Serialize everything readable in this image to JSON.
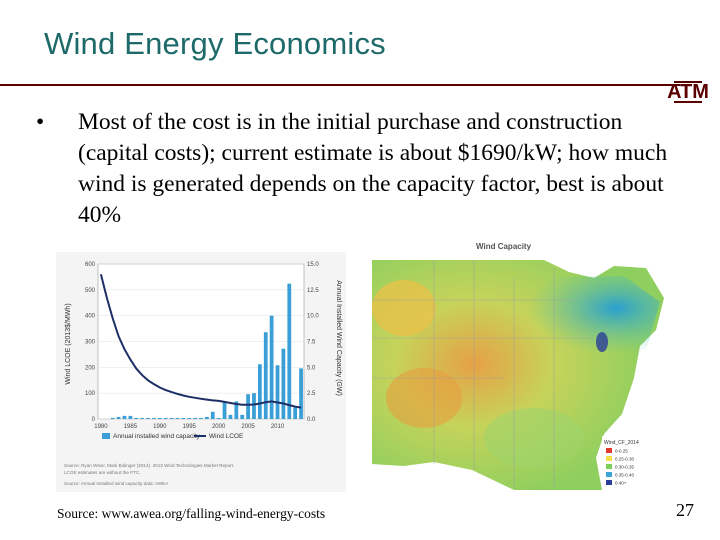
{
  "slide": {
    "title": "Wind Energy Economics",
    "bullet_text": "Most of the cost is in the initial purchase and construction (capital costs); current estimate is about $1690/kW; how much wind is generated depends on the capacity factor, best is about 40%",
    "source": "Source: www.awea.org/falling-wind-energy-costs",
    "page_number": "27",
    "logo_text": "ATM"
  },
  "colors": {
    "title": "#1e6a6a",
    "rule": "#5a0000",
    "bar": "#3a9fd6",
    "lcoe_line": "#1d2f66"
  },
  "chart_data": {
    "type": "bar",
    "title": "",
    "x_ticks": [
      "1980",
      "1985",
      "1990",
      "1995",
      "2000",
      "2005",
      "2010"
    ],
    "ylabel_left": "Wind LCOE (2013$/MWh)",
    "ylabel_right": "Annual Installed Wind Capacity (GW)",
    "yleft_ticks": [
      "600",
      "500",
      "400",
      "300",
      "200",
      "100",
      "0"
    ],
    "yright_ticks": [
      "15.0",
      "12.5",
      "10.0",
      "7.5",
      "5.0",
      "2.5",
      "0.0"
    ],
    "ylim_left": [
      0,
      600
    ],
    "ylim_right": [
      0,
      15
    ],
    "years": [
      1980,
      1981,
      1982,
      1983,
      1984,
      1985,
      1986,
      1987,
      1988,
      1989,
      1990,
      1991,
      1992,
      1993,
      1994,
      1995,
      1996,
      1997,
      1998,
      1999,
      2000,
      2001,
      2002,
      2003,
      2004,
      2005,
      2006,
      2007,
      2008,
      2009,
      2010,
      2011,
      2012,
      2013,
      2014
    ],
    "series": [
      {
        "name": "Annual installed wind capacity",
        "axis": "right",
        "values": [
          0.0,
          0.0,
          0.1,
          0.2,
          0.3,
          0.3,
          0.1,
          0.1,
          0.1,
          0.1,
          0.1,
          0.1,
          0.1,
          0.1,
          0.1,
          0.1,
          0.1,
          0.1,
          0.2,
          0.7,
          0.1,
          1.7,
          0.4,
          1.7,
          0.4,
          2.4,
          2.5,
          5.3,
          8.4,
          10.0,
          5.2,
          6.8,
          13.1,
          1.1,
          4.9
        ]
      },
      {
        "name": "Wind LCOE",
        "axis": "left",
        "values": [
          560,
          470,
          390,
          320,
          270,
          230,
          195,
          170,
          150,
          135,
          122,
          112,
          104,
          97,
          91,
          86,
          82,
          78,
          75,
          72,
          70,
          66,
          62,
          58,
          55,
          55,
          56,
          60,
          65,
          68,
          64,
          60,
          54,
          48,
          44
        ]
      }
    ],
    "legend": [
      "Annual installed wind capacity",
      "Wind LCOE"
    ],
    "notes": [
      "Source: Ryan Wiser, Mark Bolinger (2014). 2013 Wind Technologies Market Report.",
      "LCOE estimates are without the PTC."
    ],
    "credit": "Source: Annual Installed wind capacity data: AWEA"
  },
  "map": {
    "title": "Wind Capacity",
    "legend_title": "Wind_CF_2014",
    "legend_items": [
      "0-0.25",
      "0.25-0.30",
      "0.30-0.35",
      "0.35-0.40",
      "0.40+"
    ],
    "legend_colors": [
      "#e23a2c",
      "#f6e04a",
      "#7ccf58",
      "#3aa6d8",
      "#2a3d9a"
    ]
  }
}
